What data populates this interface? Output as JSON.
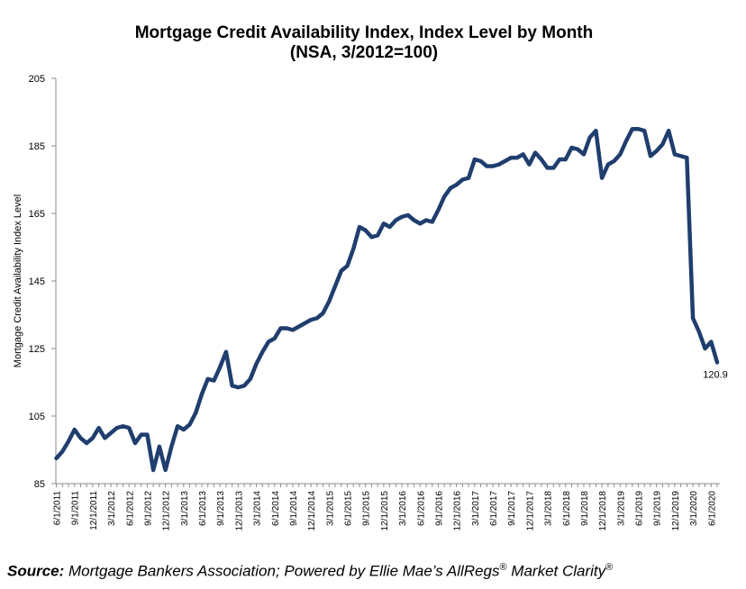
{
  "chart_data": {
    "type": "line",
    "title": "Mortgage Credit Availability Index, Index Level by Month",
    "subtitle": "(NSA, 3/2012=100)",
    "ylabel": "Mortgage Credit Availability Index Level",
    "xlabel": "",
    "ylim": [
      85,
      205
    ],
    "yticks": [
      85,
      105,
      125,
      145,
      165,
      185,
      205
    ],
    "grid": false,
    "legend": "none",
    "line_color": "#1f3e6e",
    "x_tick_labels": [
      "6/1/2011",
      "9/1/2011",
      "12/1/2011",
      "3/1/2012",
      "6/1/2012",
      "9/1/2012",
      "12/1/2012",
      "3/1/2013",
      "6/1/2013",
      "9/1/2013",
      "12/1/2013",
      "3/1/2014",
      "6/1/2014",
      "9/1/2014",
      "12/1/2014",
      "3/1/2015",
      "6/1/2015",
      "9/1/2015",
      "12/1/2015",
      "3/1/2016",
      "6/1/2016",
      "9/1/2016",
      "12/1/2016",
      "3/1/2017",
      "6/1/2017",
      "9/1/2017",
      "12/1/2017",
      "3/1/2018",
      "6/1/2018",
      "9/1/2018",
      "12/1/2018",
      "3/1/2019",
      "6/1/2019",
      "9/1/2019",
      "12/1/2019",
      "3/1/2020",
      "6/1/2020"
    ],
    "series": [
      {
        "x": [
          "6/1/2011",
          "7/1/2011",
          "8/1/2011",
          "9/1/2011",
          "10/1/2011",
          "11/1/2011",
          "12/1/2011",
          "1/1/2012",
          "2/1/2012",
          "3/1/2012",
          "4/1/2012",
          "5/1/2012",
          "6/1/2012",
          "7/1/2012",
          "8/1/2012",
          "9/1/2012",
          "10/1/2012",
          "11/1/2012",
          "12/1/2012",
          "1/1/2013",
          "2/1/2013",
          "3/1/2013",
          "4/1/2013",
          "5/1/2013",
          "6/1/2013",
          "7/1/2013",
          "8/1/2013",
          "9/1/2013",
          "10/1/2013",
          "11/1/2013",
          "12/1/2013",
          "1/1/2014",
          "2/1/2014",
          "3/1/2014",
          "4/1/2014",
          "5/1/2014",
          "6/1/2014",
          "7/1/2014",
          "8/1/2014",
          "9/1/2014",
          "10/1/2014",
          "11/1/2014",
          "12/1/2014",
          "1/1/2015",
          "2/1/2015",
          "3/1/2015",
          "4/1/2015",
          "5/1/2015",
          "6/1/2015",
          "7/1/2015",
          "8/1/2015",
          "9/1/2015",
          "10/1/2015",
          "11/1/2015",
          "12/1/2015",
          "1/1/2016",
          "2/1/2016",
          "3/1/2016",
          "4/1/2016",
          "5/1/2016",
          "6/1/2016",
          "7/1/2016",
          "8/1/2016",
          "9/1/2016",
          "10/1/2016",
          "11/1/2016",
          "12/1/2016",
          "1/1/2017",
          "2/1/2017",
          "3/1/2017",
          "4/1/2017",
          "5/1/2017",
          "6/1/2017",
          "7/1/2017",
          "8/1/2017",
          "9/1/2017",
          "10/1/2017",
          "11/1/2017",
          "12/1/2017",
          "1/1/2018",
          "2/1/2018",
          "3/1/2018",
          "4/1/2018",
          "5/1/2018",
          "6/1/2018",
          "7/1/2018",
          "8/1/2018",
          "9/1/2018",
          "10/1/2018",
          "11/1/2018",
          "12/1/2018",
          "1/1/2019",
          "2/1/2019",
          "3/1/2019",
          "4/1/2019",
          "5/1/2019",
          "6/1/2019",
          "7/1/2019",
          "8/1/2019",
          "9/1/2019",
          "10/1/2019",
          "11/1/2019",
          "12/1/2019",
          "1/1/2020",
          "2/1/2020",
          "3/1/2020",
          "4/1/2020",
          "5/1/2020",
          "6/1/2020",
          "7/1/2020"
        ],
        "values": [
          92.5,
          94.5,
          97.5,
          101,
          98.5,
          97,
          98.5,
          101.5,
          98.5,
          100,
          101.5,
          102,
          101.5,
          97,
          99.5,
          99.5,
          89,
          96,
          89,
          96,
          102,
          101,
          102.5,
          106,
          111.5,
          116,
          115.5,
          119.5,
          124,
          114,
          113.5,
          114,
          116,
          120.5,
          124,
          127,
          128,
          131,
          131,
          130.5,
          131.5,
          132.5,
          133.5,
          134,
          135.5,
          139,
          143.5,
          148,
          149.5,
          154.5,
          161,
          160,
          158,
          158.5,
          162,
          161,
          163,
          164,
          164.5,
          163,
          162,
          163,
          162.5,
          166,
          170,
          172.5,
          173.5,
          175,
          175.5,
          181,
          180.5,
          179,
          179,
          179.5,
          180.5,
          181.5,
          181.5,
          182.5,
          179.5,
          183,
          181,
          178.5,
          178.5,
          181,
          181,
          184.5,
          184,
          182.5,
          187.5,
          189.5,
          175.5,
          179.5,
          180.5,
          182.5,
          186.5,
          190,
          190,
          189.5,
          182,
          183.5,
          185.5,
          189.5,
          182.5,
          182,
          181.5,
          134,
          130,
          125,
          127,
          120.9
        ]
      }
    ],
    "annotations": [
      {
        "text": "120.9",
        "x": "7/1/2020",
        "y": 120.9
      }
    ]
  },
  "source": {
    "label": "Source:",
    "text": " Mortgage Bankers Association; Powered by Ellie Mae’s AllRegs",
    "reg1": "®",
    "text2": " Market Clarity",
    "reg2": "®"
  }
}
